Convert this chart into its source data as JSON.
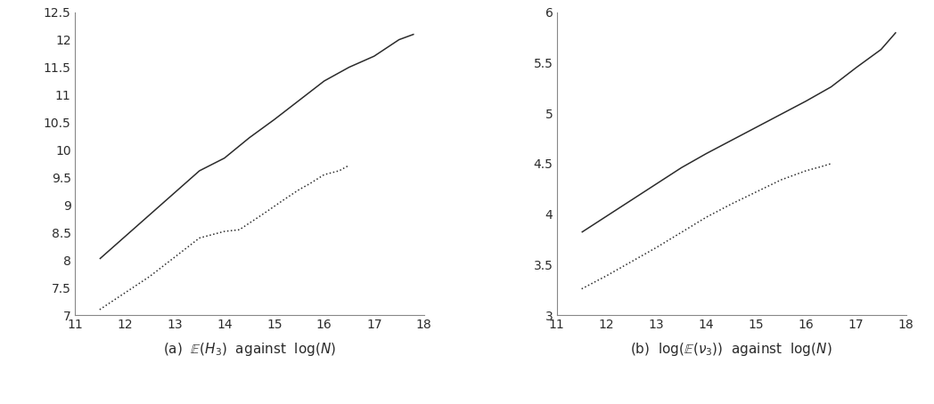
{
  "subplot_a": {
    "xlabel_parts": [
      "(a)  ",
      "\\mathbb{E}(H_3)",
      "  against  ",
      "\\log(N)"
    ],
    "solid_x": [
      11.5,
      12.0,
      12.5,
      13.0,
      13.5,
      14.0,
      14.5,
      15.0,
      15.5,
      16.0,
      16.5,
      17.0,
      17.5,
      17.8
    ],
    "solid_y": [
      8.02,
      8.42,
      8.82,
      9.22,
      9.62,
      9.85,
      10.22,
      10.55,
      10.9,
      11.25,
      11.5,
      11.7,
      12.0,
      12.1
    ],
    "dotted_x": [
      11.5,
      12.0,
      12.5,
      13.0,
      13.5,
      14.0,
      14.3,
      14.8,
      15.2,
      15.5,
      15.7,
      16.0,
      16.3,
      16.5
    ],
    "dotted_y": [
      7.1,
      7.4,
      7.7,
      8.05,
      8.4,
      8.52,
      8.55,
      8.85,
      9.1,
      9.28,
      9.38,
      9.55,
      9.62,
      9.72
    ],
    "xlim": [
      11,
      18
    ],
    "ylim": [
      7,
      12.5
    ],
    "yticks": [
      7,
      7.5,
      8,
      8.5,
      9,
      9.5,
      10,
      10.5,
      11,
      11.5,
      12,
      12.5
    ],
    "xticks": [
      11,
      12,
      13,
      14,
      15,
      16,
      17,
      18
    ]
  },
  "subplot_b": {
    "xlabel_parts": [
      "(b)  ",
      "\\log(\\mathbb{E}(\\nu_3))",
      "  against  ",
      "\\log(N)"
    ],
    "solid_x": [
      11.5,
      12.0,
      12.5,
      13.0,
      13.5,
      14.0,
      14.5,
      15.0,
      15.5,
      16.0,
      16.5,
      17.0,
      17.5,
      17.8
    ],
    "solid_y": [
      3.82,
      3.98,
      4.14,
      4.3,
      4.46,
      4.6,
      4.73,
      4.86,
      4.99,
      5.12,
      5.26,
      5.45,
      5.63,
      5.8
    ],
    "dotted_x": [
      11.5,
      12.0,
      12.5,
      13.0,
      13.5,
      14.0,
      14.5,
      15.0,
      15.5,
      16.0,
      16.3,
      16.5
    ],
    "dotted_y": [
      3.26,
      3.39,
      3.53,
      3.67,
      3.82,
      3.97,
      4.1,
      4.22,
      4.34,
      4.43,
      4.47,
      4.5
    ],
    "xlim": [
      11,
      18
    ],
    "ylim": [
      3,
      6
    ],
    "yticks": [
      3,
      3.5,
      4,
      4.5,
      5,
      5.5,
      6
    ],
    "xticks": [
      11,
      12,
      13,
      14,
      15,
      16,
      17,
      18
    ]
  },
  "line_color": "#2b2b2b",
  "background_color": "#ffffff",
  "linewidth": 1.1,
  "dotted_linewidth": 1.1
}
